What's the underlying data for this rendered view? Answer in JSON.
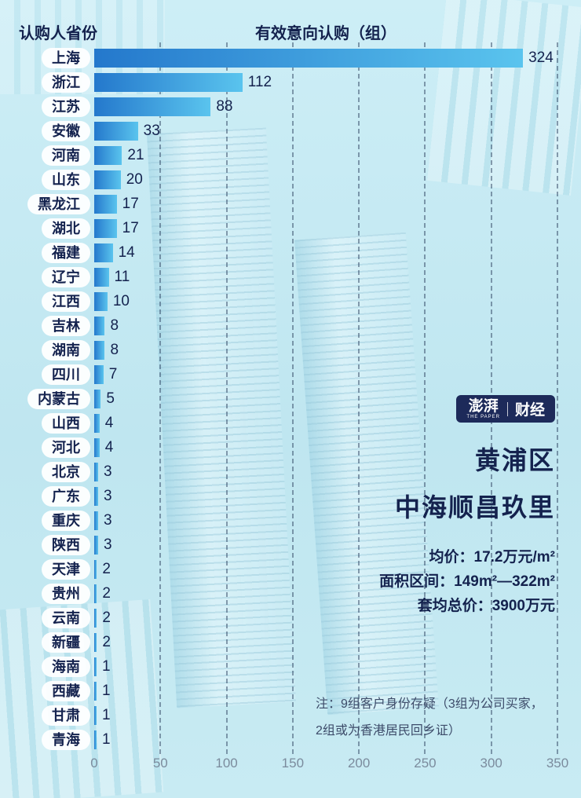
{
  "chart_data": {
    "type": "bar",
    "orientation": "horizontal",
    "title": "有效意向认购（组）",
    "category_axis_title": "认购人省份",
    "categories": [
      "上海",
      "浙江",
      "江苏",
      "安徽",
      "河南",
      "山东",
      "黑龙江",
      "湖北",
      "福建",
      "辽宁",
      "江西",
      "吉林",
      "湖南",
      "四川",
      "内蒙古",
      "山西",
      "河北",
      "北京",
      "广东",
      "重庆",
      "陕西",
      "天津",
      "贵州",
      "云南",
      "新疆",
      "海南",
      "西藏",
      "甘肃",
      "青海"
    ],
    "values": [
      324,
      112,
      88,
      33,
      21,
      20,
      17,
      17,
      14,
      11,
      10,
      8,
      8,
      7,
      5,
      4,
      4,
      3,
      3,
      3,
      3,
      2,
      2,
      2,
      2,
      1,
      1,
      1,
      1
    ],
    "xlim": [
      0,
      350
    ],
    "x_ticks": [
      0,
      50,
      100,
      150,
      200,
      250,
      300,
      350
    ],
    "grid": "vertical-dashed",
    "legend": "none"
  },
  "logo": {
    "brand": "澎湃",
    "brand_sub": "THE PAPER",
    "section": "财经"
  },
  "panel": {
    "district": "黄浦区",
    "project": "中海顺昌玖里",
    "stats": [
      "均价：17.2万元/m²",
      "面积区间：149m²—322m²",
      "套均总价：3900万元"
    ],
    "note": "注：9组客户身份存疑（3组为公司买家，2组或为香港居民回乡证）"
  },
  "colors": {
    "bar_gradient_start": "#2478cc",
    "bar_gradient_end": "#5ac4ee",
    "text_navy": "#14224e",
    "background": "#c5eaf3",
    "logo_bg": "#1d2a5a"
  }
}
